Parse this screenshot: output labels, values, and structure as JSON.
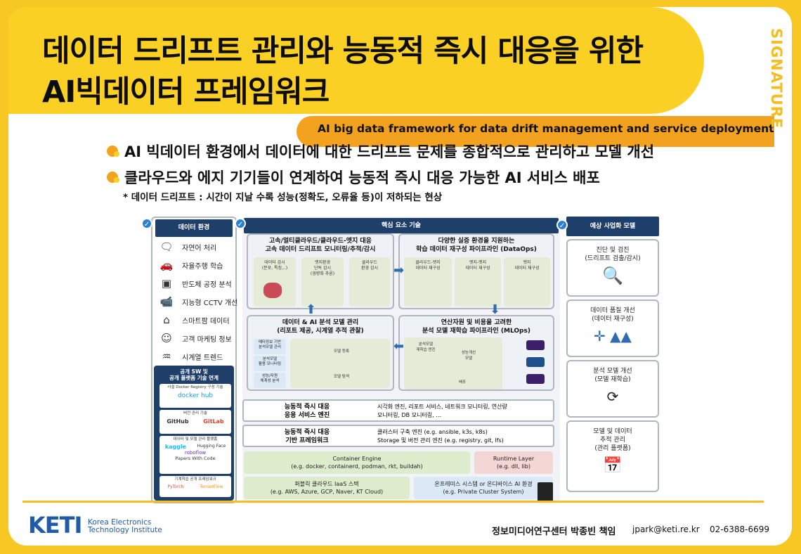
{
  "header": {
    "title_line1": "데이터 드리프트 관리와 능동적 즉시 대응을 위한",
    "title_line2": "AI빅데이터 프레임워크",
    "subtitle": "AI big data framework for data drift management and service deployment",
    "signature": "SIGNATURE"
  },
  "bullets": [
    "AI 빅데이터 환경에서 데이터에 대한 드리프트 문제를 종합적으로 관리하고 모델 개선",
    "클라우드와 에지 기기들이 연계하여 능동적 즉시 대응 가능한 AI 서비스 배포"
  ],
  "note": "* 데이터 드리프트 : 시간이 지날 수록 성능(정확도, 오류율 등)이 저하되는 현상",
  "data_env": {
    "header": "데이터 환경",
    "items": [
      {
        "icon": "car-icon",
        "label": "자연어 처리"
      },
      {
        "icon": "self-driving-icon",
        "label": "자율주행 학습"
      },
      {
        "icon": "chip-icon",
        "label": "반도체 공정 분석"
      },
      {
        "icon": "cctv-icon",
        "label": "지능형 CCTV 개선"
      },
      {
        "icon": "farm-icon",
        "label": "스마트팜 데이터"
      },
      {
        "icon": "customer-icon",
        "label": "고객 마케팅 정보"
      },
      {
        "icon": "waveform-icon",
        "label": "시계열 트렌드"
      }
    ]
  },
  "oss": {
    "title": "공개 SW 및\n공개 플랫폼 기술 연계",
    "s1": "사설 Docker Registry 구성 기술",
    "dockerhub": "docker hub",
    "s2": "버전 관리 기술",
    "github": "GitHub",
    "gitlab": "GitLab",
    "s3": "데이터 및 모델 관리 플랫폼",
    "kaggle": "kaggle",
    "hf": "Hugging Face",
    "roboflow": "roboflow",
    "pwc": "Papers With Code",
    "s4": "기계학습 공개 프레임워크",
    "pytorch": "PyTorch",
    "tf": "TensorFlow"
  },
  "core": {
    "header": "핵심 요소 기술",
    "q1": {
      "title": "고속/멀티클라우드/클라우드-엣지 대응\n고속 데이터 드리프트 모니터링/추적/감시",
      "m1": "데이터 감시\n(분포, 특징,..)",
      "m2": "엣지환경\n단독 감시\n(경량화 추론)",
      "m3": "클라우드\n환경 감시"
    },
    "q2": {
      "title": "다양한 실증 환경을 지원하는\n학습 데이터 재구성 파이프라인 (DataOps)",
      "m1": "클라우드-엣지\n데이터 재구성",
      "m2": "엣지-엣지\n데이터 재구성",
      "m3": "엣지\n데이터 재구성"
    },
    "q3": {
      "title": "데이터 & AI 분석 모델 관리\n(리포트 제공, 시계열 추적 관찰)",
      "m1": "메타정보 기반\n분석모델 관리",
      "m2": "분석모델\n활용 모니터링",
      "m3": "성능/자원\n체계성 분석",
      "reg": "모델 등록",
      "track": "모델 탐색"
    },
    "q4": {
      "title": "연산자원 및 비용을 고려한\n분석 모델 재학습 파이프라인 (MLOps)",
      "m1": "분석모델\n재학습 엔진",
      "m2": "성능개선\n모델",
      "deploy": "배포"
    },
    "r1": {
      "name": "능동적 즉시 대응\n응용 서비스 엔진",
      "desc": "시각화 엔진, 리포트 서비스, 네트워크 모니터링, 연산량\n모니터링, DB 모니터링, …"
    },
    "r2": {
      "name": "능동적 즉시 대응\n기반 프레임워크",
      "desc": "클러스터 구축 엔진 (e.g. ansible, k3s, k8s)\nStorage 및 버전 관리 엔진 (e.g. registry, git, lfs)"
    },
    "container": {
      "name": "Container Engine",
      "ex": "(e.g. docker, containerd, podman, rkt, buildah)"
    },
    "runtime": {
      "name": "Runtime Layer",
      "ex": "(e.g. dll, lib)"
    },
    "public": {
      "name": "퍼블릭 클라우드 IaaS 스택",
      "ex": "(e.g. AWS, Azure, GCP, Naver, KT Cloud)"
    },
    "onprem": {
      "name": "온프레미스 시스템 or 온디바이스 AI 환경",
      "ex": "(e.g. Private Cluster System)"
    }
  },
  "effects": {
    "header": "예상 사업화 모델",
    "items": [
      "진단 및 검진\n(드리프트 검출/감시)",
      "데이터 품질 개선\n(데이터 재구성)",
      "분석 모델 개선\n(모델 재학습)",
      "모델 및 데이터\n추적 관리\n(관리 플랫폼)"
    ]
  },
  "footer": {
    "logo": "KETI",
    "org": "Korea Electronics\nTechnology Institute",
    "author": "정보미디어연구센터 박종빈 책임",
    "email": "jpark@keti.re.kr",
    "phone": "02-6388-6699"
  },
  "colors": {
    "yellow": "#fbd024",
    "orange": "#f3a21f",
    "navy": "#1f3f6b",
    "blue": "#2b7fd3"
  }
}
